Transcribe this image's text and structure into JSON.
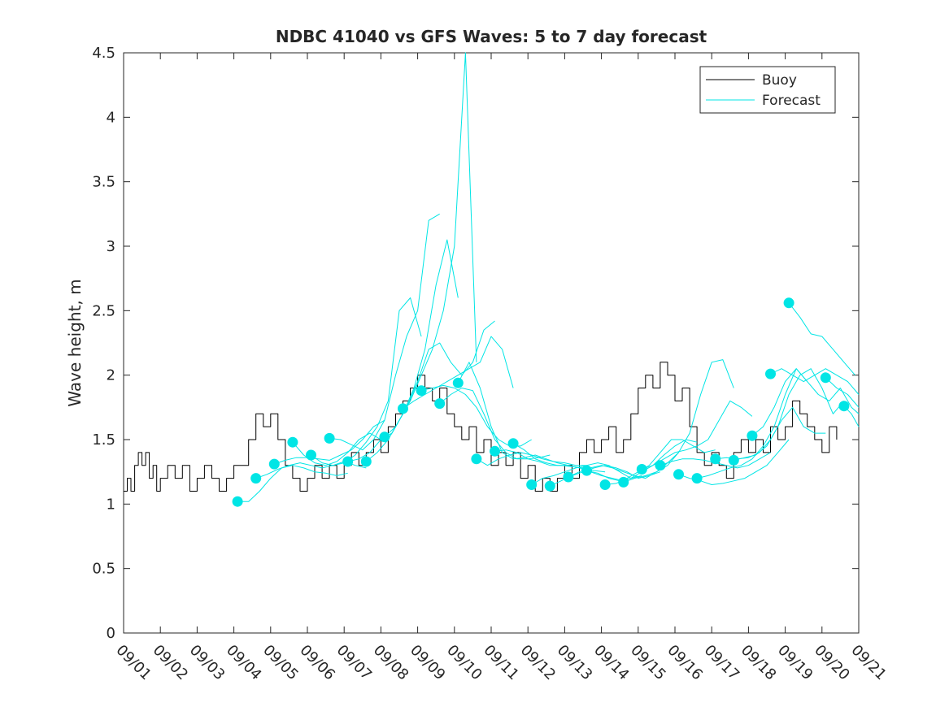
{
  "chart_data": {
    "type": "line",
    "title": "NDBC 41040 vs GFS Waves: 5 to 7 day forecast",
    "xlabel": "",
    "ylabel": "Wave height, m",
    "xlim": [
      0,
      20
    ],
    "ylim": [
      0,
      4.5
    ],
    "x_tick_labels": [
      "09/01",
      "09/02",
      "09/03",
      "09/04",
      "09/05",
      "09/06",
      "09/07",
      "09/08",
      "09/09",
      "09/10",
      "09/11",
      "09/12",
      "09/13",
      "09/14",
      "09/15",
      "09/16",
      "09/17",
      "09/18",
      "09/19",
      "09/20",
      "09/21"
    ],
    "y_ticks": [
      0,
      0.5,
      1,
      1.5,
      2,
      2.5,
      3,
      3.5,
      4,
      4.5
    ],
    "y_tick_labels": [
      "0",
      "0.5",
      "1",
      "1.5",
      "2",
      "2.5",
      "3",
      "3.5",
      "4",
      "4.5"
    ],
    "legend": {
      "position": "top-right",
      "entries": [
        {
          "name": "Buoy",
          "color": "#000000"
        },
        {
          "name": "Forecast",
          "color": "#00E5E5"
        }
      ]
    },
    "colors": {
      "buoy": "#000000",
      "forecast": "#00E5E5"
    },
    "series": [
      {
        "name": "Buoy",
        "x": [
          0,
          0.1,
          0.2,
          0.3,
          0.4,
          0.5,
          0.6,
          0.7,
          0.8,
          0.9,
          1.0,
          1.2,
          1.4,
          1.6,
          1.8,
          2.0,
          2.2,
          2.4,
          2.6,
          2.8,
          3.0,
          3.2,
          3.4,
          3.6,
          3.8,
          4.0,
          4.2,
          4.4,
          4.6,
          4.8,
          5.0,
          5.2,
          5.4,
          5.6,
          5.8,
          6.0,
          6.2,
          6.4,
          6.6,
          6.8,
          7.0,
          7.2,
          7.4,
          7.6,
          7.8,
          8.0,
          8.2,
          8.4,
          8.6,
          8.8,
          9.0,
          9.2,
          9.4,
          9.6,
          9.8,
          10.0,
          10.2,
          10.4,
          10.6,
          10.8,
          11.0,
          11.2,
          11.4,
          11.6,
          11.8,
          12.0,
          12.2,
          12.4,
          12.6,
          12.8,
          13.0,
          13.2,
          13.4,
          13.6,
          13.8,
          14.0,
          14.2,
          14.4,
          14.6,
          14.8,
          15.0,
          15.2,
          15.4,
          15.6,
          15.8,
          16.0,
          16.2,
          16.4,
          16.6,
          16.8,
          17.0,
          17.2,
          17.4,
          17.6,
          17.8,
          18.0,
          18.2,
          18.4,
          18.6,
          18.8,
          19.0,
          19.2,
          19.4
        ],
        "values": [
          1.1,
          1.2,
          1.1,
          1.3,
          1.4,
          1.3,
          1.4,
          1.2,
          1.3,
          1.1,
          1.2,
          1.3,
          1.2,
          1.3,
          1.1,
          1.2,
          1.3,
          1.2,
          1.1,
          1.2,
          1.3,
          1.3,
          1.5,
          1.7,
          1.6,
          1.7,
          1.5,
          1.3,
          1.2,
          1.1,
          1.2,
          1.3,
          1.2,
          1.3,
          1.2,
          1.3,
          1.4,
          1.3,
          1.4,
          1.5,
          1.4,
          1.6,
          1.7,
          1.8,
          1.9,
          2.0,
          1.9,
          1.8,
          1.9,
          1.7,
          1.6,
          1.5,
          1.6,
          1.4,
          1.5,
          1.3,
          1.4,
          1.3,
          1.4,
          1.2,
          1.3,
          1.1,
          1.2,
          1.1,
          1.2,
          1.3,
          1.2,
          1.4,
          1.5,
          1.4,
          1.5,
          1.6,
          1.4,
          1.5,
          1.7,
          1.9,
          2.0,
          1.9,
          2.1,
          2.0,
          1.8,
          1.9,
          1.6,
          1.4,
          1.3,
          1.4,
          1.3,
          1.2,
          1.4,
          1.5,
          1.4,
          1.5,
          1.4,
          1.6,
          1.5,
          1.6,
          1.8,
          1.7,
          1.6,
          1.5,
          1.4,
          1.6,
          1.5
        ]
      },
      {
        "name": "Forecast",
        "x": [
          3.1,
          3.4,
          3.7,
          4.0,
          4.3,
          4.6,
          4.9,
          5.2,
          5.5,
          5.8,
          6.1
        ],
        "values": [
          1.02,
          1.02,
          1.1,
          1.2,
          1.28,
          1.3,
          1.28,
          1.25,
          1.24,
          1.22,
          1.24
        ]
      },
      {
        "name": "Forecast",
        "x": [
          3.6,
          3.9,
          4.2,
          4.5,
          4.8,
          5.1,
          5.4,
          5.7,
          6.0,
          6.3,
          6.6
        ],
        "values": [
          1.2,
          1.23,
          1.27,
          1.3,
          1.32,
          1.3,
          1.28,
          1.3,
          1.33,
          1.3,
          1.28
        ]
      },
      {
        "name": "Forecast",
        "x": [
          4.1,
          4.4,
          4.7,
          5.0,
          5.3,
          5.6,
          5.9,
          6.2,
          6.5,
          6.8,
          7.1
        ],
        "values": [
          1.31,
          1.34,
          1.36,
          1.36,
          1.35,
          1.34,
          1.38,
          1.42,
          1.5,
          1.6,
          1.65
        ]
      },
      {
        "name": "Forecast",
        "x": [
          4.6,
          4.9,
          5.2,
          5.5,
          5.8,
          6.1,
          6.4,
          6.7,
          7.0,
          7.3,
          7.6
        ],
        "values": [
          1.48,
          1.38,
          1.32,
          1.3,
          1.33,
          1.4,
          1.5,
          1.55,
          1.5,
          1.55,
          1.7
        ]
      },
      {
        "name": "Forecast",
        "x": [
          5.1,
          5.4,
          5.7,
          6.0,
          6.3,
          6.6,
          6.9,
          7.2,
          7.5,
          7.8,
          8.1
        ],
        "values": [
          1.38,
          1.32,
          1.3,
          1.32,
          1.38,
          1.48,
          1.6,
          1.8,
          2.5,
          2.6,
          2.3
        ]
      },
      {
        "name": "Forecast",
        "x": [
          5.6,
          5.9,
          6.2,
          6.5,
          6.8,
          7.1,
          7.4,
          7.7,
          8.0,
          8.3,
          8.6
        ],
        "values": [
          1.51,
          1.5,
          1.46,
          1.42,
          1.5,
          1.65,
          2.0,
          2.3,
          2.5,
          3.2,
          3.25
        ]
      },
      {
        "name": "Forecast",
        "x": [
          6.1,
          6.4,
          6.7,
          7.0,
          7.3,
          7.6,
          7.9,
          8.2,
          8.5,
          8.8,
          9.1
        ],
        "values": [
          1.33,
          1.35,
          1.4,
          1.5,
          1.55,
          1.7,
          1.9,
          2.2,
          2.7,
          3.05,
          2.6
        ]
      },
      {
        "name": "Forecast",
        "x": [
          6.6,
          6.9,
          7.2,
          7.5,
          7.8,
          8.1,
          8.4,
          8.7,
          9.0,
          9.3,
          9.6
        ],
        "values": [
          1.33,
          1.4,
          1.5,
          1.65,
          1.8,
          2.0,
          2.2,
          2.5,
          3.0,
          4.5,
          2.1
        ]
      },
      {
        "name": "Forecast",
        "x": [
          7.1,
          7.4,
          7.7,
          8.0,
          8.3,
          8.6,
          8.9,
          9.2,
          9.5,
          9.8,
          10.1
        ],
        "values": [
          1.52,
          1.6,
          1.75,
          1.95,
          2.2,
          2.25,
          2.1,
          2.0,
          2.1,
          2.35,
          2.42
        ]
      },
      {
        "name": "Forecast",
        "x": [
          7.6,
          7.9,
          8.2,
          8.5,
          8.8,
          9.1,
          9.4,
          9.7,
          10.0,
          10.3,
          10.6
        ],
        "values": [
          1.74,
          1.8,
          1.85,
          1.9,
          1.95,
          2.0,
          2.05,
          2.1,
          2.3,
          2.2,
          1.9
        ]
      },
      {
        "name": "Forecast",
        "x": [
          8.1,
          8.4,
          8.7,
          9.0,
          9.3,
          9.6,
          9.9,
          10.2,
          10.5,
          10.8,
          11.1
        ],
        "values": [
          1.88,
          1.9,
          1.92,
          1.9,
          1.85,
          1.75,
          1.6,
          1.5,
          1.45,
          1.45,
          1.5
        ]
      },
      {
        "name": "Forecast",
        "x": [
          8.6,
          8.9,
          9.2,
          9.5,
          9.8,
          10.1,
          10.4,
          10.7,
          11.0,
          11.3,
          11.6
        ],
        "values": [
          1.78,
          1.85,
          1.9,
          1.88,
          1.7,
          1.5,
          1.4,
          1.35,
          1.35,
          1.36,
          1.38
        ]
      },
      {
        "name": "Forecast",
        "x": [
          9.1,
          9.4,
          9.7,
          10.0,
          10.3,
          10.6,
          10.9,
          11.2,
          11.5,
          11.8,
          12.1
        ],
        "values": [
          1.94,
          2.1,
          1.9,
          1.6,
          1.4,
          1.35,
          1.36,
          1.38,
          1.35,
          1.32,
          1.3
        ]
      },
      {
        "name": "Forecast",
        "x": [
          9.6,
          9.9,
          10.2,
          10.5,
          10.8,
          11.1,
          11.4,
          11.7,
          12.0,
          12.3,
          12.6
        ],
        "values": [
          1.35,
          1.3,
          1.35,
          1.38,
          1.4,
          1.38,
          1.35,
          1.33,
          1.32,
          1.3,
          1.3
        ]
      },
      {
        "name": "Forecast",
        "x": [
          10.1,
          10.4,
          10.7,
          11.0,
          11.3,
          11.6,
          11.9,
          12.2,
          12.5,
          12.8,
          13.1
        ],
        "values": [
          1.41,
          1.42,
          1.4,
          1.35,
          1.33,
          1.3,
          1.3,
          1.29,
          1.28,
          1.26,
          1.25
        ]
      },
      {
        "name": "Forecast",
        "x": [
          10.6,
          10.9,
          11.2,
          11.5,
          11.8,
          12.1,
          12.4,
          12.7,
          13.0,
          13.3,
          13.6
        ],
        "values": [
          1.47,
          1.42,
          1.35,
          1.32,
          1.3,
          1.3,
          1.28,
          1.25,
          1.22,
          1.2,
          1.18
        ]
      },
      {
        "name": "Forecast",
        "x": [
          11.1,
          11.4,
          11.7,
          12.0,
          12.3,
          12.6,
          12.9,
          13.2,
          13.5,
          13.8,
          14.1
        ],
        "values": [
          1.15,
          1.2,
          1.22,
          1.25,
          1.28,
          1.3,
          1.32,
          1.3,
          1.25,
          1.2,
          1.22
        ]
      },
      {
        "name": "Forecast",
        "x": [
          11.6,
          11.9,
          12.2,
          12.5,
          12.8,
          13.1,
          13.4,
          13.7,
          14.0,
          14.3,
          14.6
        ],
        "values": [
          1.14,
          1.18,
          1.22,
          1.25,
          1.28,
          1.3,
          1.28,
          1.25,
          1.2,
          1.22,
          1.25
        ]
      },
      {
        "name": "Forecast",
        "x": [
          12.1,
          12.4,
          12.7,
          13.0,
          13.3,
          13.6,
          13.9,
          14.2,
          14.5,
          14.8,
          15.1
        ],
        "values": [
          1.21,
          1.25,
          1.28,
          1.3,
          1.28,
          1.25,
          1.22,
          1.2,
          1.25,
          1.32,
          1.4
        ]
      },
      {
        "name": "Forecast",
        "x": [
          12.6,
          12.9,
          13.2,
          13.5,
          13.8,
          14.1,
          14.4,
          14.7,
          15.0,
          15.3,
          15.6
        ],
        "values": [
          1.26,
          1.24,
          1.2,
          1.18,
          1.2,
          1.25,
          1.3,
          1.38,
          1.45,
          1.5,
          1.48
        ]
      },
      {
        "name": "Forecast",
        "x": [
          13.1,
          13.4,
          13.7,
          14.0,
          14.3,
          14.6,
          14.9,
          15.2,
          15.5,
          15.8,
          16.1
        ],
        "values": [
          1.15,
          1.16,
          1.2,
          1.25,
          1.3,
          1.4,
          1.5,
          1.5,
          1.45,
          1.4,
          1.42
        ]
      },
      {
        "name": "Forecast",
        "x": [
          13.6,
          13.9,
          14.2,
          14.5,
          14.8,
          15.1,
          15.4,
          15.7,
          16.0,
          16.3,
          16.6
        ],
        "values": [
          1.17,
          1.2,
          1.22,
          1.25,
          1.3,
          1.4,
          1.55,
          1.85,
          2.1,
          2.12,
          1.9
        ]
      },
      {
        "name": "Forecast",
        "x": [
          14.1,
          14.4,
          14.7,
          15.0,
          15.3,
          15.6,
          15.9,
          16.2,
          16.5,
          16.8,
          17.1
        ],
        "values": [
          1.27,
          1.3,
          1.35,
          1.4,
          1.42,
          1.45,
          1.5,
          1.65,
          1.8,
          1.75,
          1.68
        ]
      },
      {
        "name": "Forecast",
        "x": [
          14.6,
          14.9,
          15.2,
          15.5,
          15.8,
          16.1,
          16.4,
          16.7,
          17.0,
          17.3,
          17.6
        ],
        "values": [
          1.3,
          1.33,
          1.35,
          1.35,
          1.34,
          1.32,
          1.3,
          1.28,
          1.3,
          1.35,
          1.4
        ]
      },
      {
        "name": "Forecast",
        "x": [
          15.1,
          15.4,
          15.7,
          16.0,
          16.3,
          16.6,
          16.9,
          17.2,
          17.5,
          17.8,
          18.1
        ],
        "values": [
          1.23,
          1.2,
          1.18,
          1.15,
          1.16,
          1.18,
          1.2,
          1.25,
          1.3,
          1.4,
          1.5
        ]
      },
      {
        "name": "Forecast",
        "x": [
          15.6,
          15.9,
          16.2,
          16.5,
          16.8,
          17.1,
          17.4,
          17.7,
          18.0,
          18.3,
          18.6
        ],
        "values": [
          1.2,
          1.22,
          1.25,
          1.28,
          1.3,
          1.35,
          1.45,
          1.6,
          1.85,
          2.05,
          1.95
        ]
      },
      {
        "name": "Forecast",
        "x": [
          16.1,
          16.4,
          16.7,
          17.0,
          17.3,
          17.6,
          17.9,
          18.2,
          18.5,
          18.8,
          19.1
        ],
        "values": [
          1.35,
          1.36,
          1.35,
          1.36,
          1.4,
          1.5,
          1.65,
          1.75,
          1.6,
          1.55,
          1.55
        ]
      },
      {
        "name": "Forecast",
        "x": [
          16.6,
          16.9,
          17.2,
          17.5,
          17.8,
          18.1,
          18.4,
          18.7,
          19.0,
          19.3,
          19.6
        ],
        "values": [
          1.34,
          1.36,
          1.38,
          1.45,
          1.6,
          1.85,
          2.0,
          2.05,
          1.9,
          1.7,
          1.8
        ]
      },
      {
        "name": "Forecast",
        "x": [
          17.1,
          17.4,
          17.7,
          18.0,
          18.3,
          18.6,
          18.9,
          19.2,
          19.5,
          19.8,
          20.0
        ],
        "values": [
          1.53,
          1.6,
          1.75,
          1.95,
          2.05,
          1.95,
          1.85,
          1.8,
          1.9,
          1.75,
          1.7
        ]
      },
      {
        "name": "Forecast",
        "x": [
          17.6,
          17.9,
          18.2,
          18.5,
          18.8,
          19.1,
          19.4,
          19.7,
          20.0
        ],
        "values": [
          2.01,
          2.05,
          2.0,
          1.95,
          2.0,
          2.05,
          2.0,
          1.95,
          1.85
        ]
      },
      {
        "name": "Forecast",
        "x": [
          18.1,
          18.4,
          18.7,
          19.0,
          19.3,
          19.6,
          19.9
        ],
        "values": [
          2.56,
          2.45,
          2.32,
          2.3,
          2.2,
          2.1,
          2.0
        ]
      },
      {
        "name": "Forecast",
        "x": [
          19.1,
          19.4,
          19.7,
          20.0
        ],
        "values": [
          1.98,
          1.9,
          1.85,
          1.75
        ]
      },
      {
        "name": "Forecast",
        "x": [
          19.6,
          19.8,
          20.0
        ],
        "values": [
          1.76,
          1.7,
          1.6
        ]
      }
    ]
  }
}
